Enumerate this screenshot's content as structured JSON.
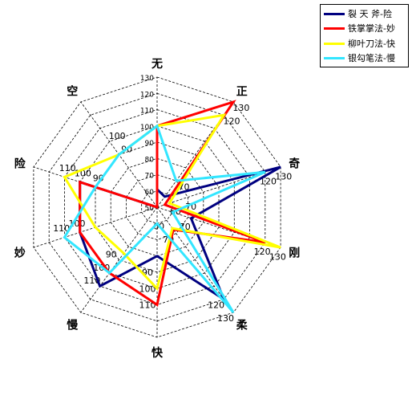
{
  "chart_data": {
    "type": "radar",
    "title": "",
    "axes": [
      "无",
      "正",
      "奇",
      "刚",
      "柔",
      "快",
      "慢",
      "妙",
      "险",
      "空"
    ],
    "scale": {
      "min": 50,
      "max": 130,
      "step": 10
    },
    "rings": [
      "50",
      "60",
      "70",
      "80",
      "90",
      "100",
      "110",
      "120",
      "130"
    ],
    "grid": true,
    "legend_position": "top-right",
    "series": [
      {
        "name": "裂 天 斧-险",
        "color": "#000080",
        "values": [
          61,
          58,
          130,
          72,
          120,
          80,
          110,
          100,
          100,
          50
        ]
      },
      {
        "name": "铁掌掌法-妙",
        "color": "#ff0000",
        "values": [
          100,
          130,
          55,
          120,
          67,
          110,
          100,
          100,
          100,
          50
        ]
      },
      {
        "name": "柳叶刀法-快",
        "color": "#ffff00",
        "values": [
          100,
          120,
          58,
          130,
          66,
          100,
          85,
          90,
          110,
          90
        ]
      },
      {
        "name": "银勾笔法-慢",
        "color": "#33e6ff",
        "values": [
          100,
          70,
          120,
          60,
          130,
          60,
          100,
          110,
          90,
          90
        ]
      }
    ],
    "axis_tick_labels": [
      {
        "axis": 0,
        "labels": [
          "50",
          "60",
          "70",
          "80",
          "90",
          "100",
          "110",
          "120",
          "130"
        ]
      },
      {
        "axis": 1,
        "labels": [
          "70",
          "120",
          "130"
        ]
      },
      {
        "axis": 2,
        "labels": [
          "60",
          "70",
          "120",
          "130"
        ]
      },
      {
        "axis": 3,
        "labels": [
          "70",
          "120",
          "130"
        ]
      },
      {
        "axis": 4,
        "labels": [
          "60",
          "70",
          "120",
          "130"
        ]
      },
      {
        "axis": 5,
        "labels": [
          "90",
          "100",
          "110"
        ]
      },
      {
        "axis": 6,
        "labels": [
          "90",
          "100",
          "110"
        ]
      },
      {
        "axis": 7,
        "labels": [
          "100",
          "110"
        ]
      },
      {
        "axis": 8,
        "labels": [
          "90",
          "100",
          "110"
        ]
      },
      {
        "axis": 9,
        "labels": [
          "90",
          "100"
        ]
      }
    ]
  }
}
